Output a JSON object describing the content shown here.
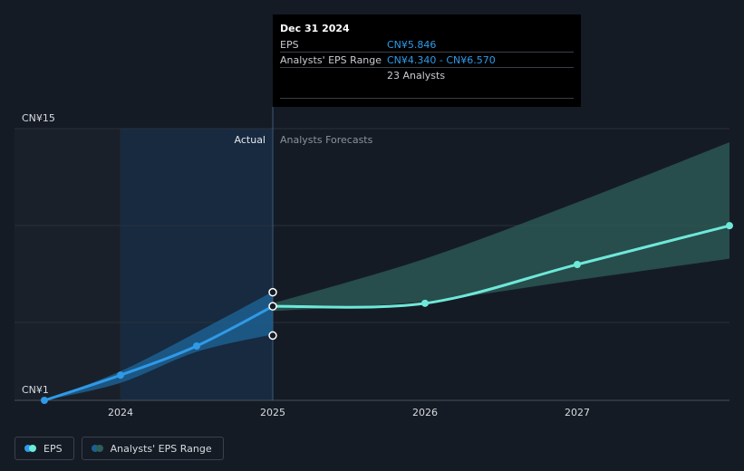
{
  "chart_data": {
    "type": "line",
    "ylabel_top": "CN¥15",
    "ylabel_bottom": "CN¥1",
    "ylim": [
      1,
      15
    ],
    "x_ticks": [
      "2024",
      "2025",
      "2026",
      "2027"
    ],
    "region_labels": {
      "actual": "Actual",
      "forecast": "Analysts Forecasts"
    },
    "eps_actual": [
      {
        "x": 2023.5,
        "y": 1.0
      },
      {
        "x": 2024.0,
        "y": 2.3
      },
      {
        "x": 2024.5,
        "y": 3.8
      },
      {
        "x": 2025.0,
        "y": 5.846
      }
    ],
    "eps_forecast": [
      {
        "x": 2025.0,
        "y": 5.846
      },
      {
        "x": 2026.0,
        "y": 6.0
      },
      {
        "x": 2027.0,
        "y": 8.0
      },
      {
        "x": 2028.0,
        "y": 10.0
      }
    ],
    "actual_band": {
      "x": [
        2023.5,
        2024.0,
        2024.5,
        2025.0
      ],
      "low": [
        1.0,
        1.9,
        3.5,
        4.4
      ],
      "high": [
        1.0,
        2.5,
        4.5,
        6.6
      ]
    },
    "forecast_band": {
      "x": [
        2025.0,
        2026.0,
        2027.0,
        2028.0
      ],
      "low": [
        5.6,
        6.1,
        7.2,
        8.3
      ],
      "high": [
        6.0,
        8.3,
        11.2,
        14.3
      ]
    },
    "range_points": [
      {
        "x": 2025.0,
        "y": 6.57
      },
      {
        "x": 2025.0,
        "y": 4.34
      }
    ],
    "series": [
      {
        "name": "EPS",
        "color": "#2f9ae8",
        "forecast_color": "#6ee8d9"
      },
      {
        "name": "Analysts' EPS Range",
        "color": "#1d5f8f",
        "forecast_color": "#2d5f5a"
      }
    ]
  },
  "tooltip": {
    "title": "Dec 31 2024",
    "eps_label": "EPS",
    "eps_value": "CN¥5.846",
    "range_label": "Analysts' EPS Range",
    "range_value": "CN¥4.340 - CN¥6.570",
    "analysts": "23 Analysts"
  },
  "legend": {
    "eps": "EPS",
    "range": "Analysts' EPS Range"
  },
  "colors": {
    "background": "#151b24",
    "eps_actual": "#2f9ae8",
    "eps_forecast": "#6ee8d9",
    "band_actual": "#1d5f8f",
    "band_forecast": "#2d5f5a"
  }
}
